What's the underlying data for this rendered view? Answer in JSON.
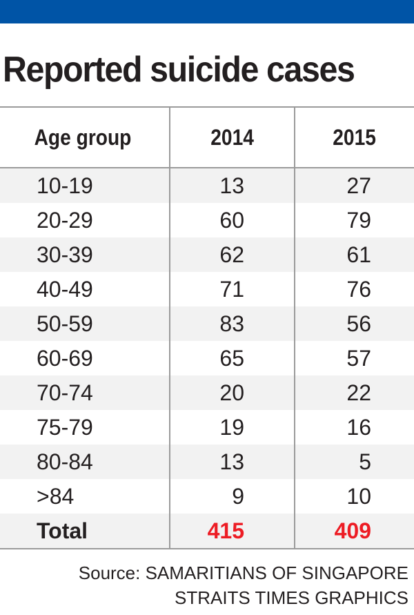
{
  "header_color": "#0054a6",
  "title": "Reported suicide cases",
  "chart_data": {
    "type": "table",
    "title": "Reported suicide cases",
    "columns": [
      "Age group",
      "2014",
      "2015"
    ],
    "rows": [
      {
        "age": "10-19",
        "y2014": 13,
        "y2015": 27
      },
      {
        "age": "20-29",
        "y2014": 60,
        "y2015": 79
      },
      {
        "age": "30-39",
        "y2014": 62,
        "y2015": 61
      },
      {
        "age": "40-49",
        "y2014": 71,
        "y2015": 76
      },
      {
        "age": "50-59",
        "y2014": 83,
        "y2015": 56
      },
      {
        "age": "60-69",
        "y2014": 65,
        "y2015": 57
      },
      {
        "age": "70-74",
        "y2014": 20,
        "y2015": 22
      },
      {
        "age": "75-79",
        "y2014": 19,
        "y2015": 16
      },
      {
        "age": "80-84",
        "y2014": 13,
        "y2015": 5
      },
      {
        "age": ">84",
        "y2014": 9,
        "y2015": 10
      }
    ],
    "total": {
      "label": "Total",
      "y2014": 415,
      "y2015": 409
    },
    "total_color": "#ed1c24"
  },
  "source": {
    "line1": "Source: SAMARITIANS OF SINGAPORE",
    "line2": "STRAITS TIMES GRAPHICS"
  }
}
